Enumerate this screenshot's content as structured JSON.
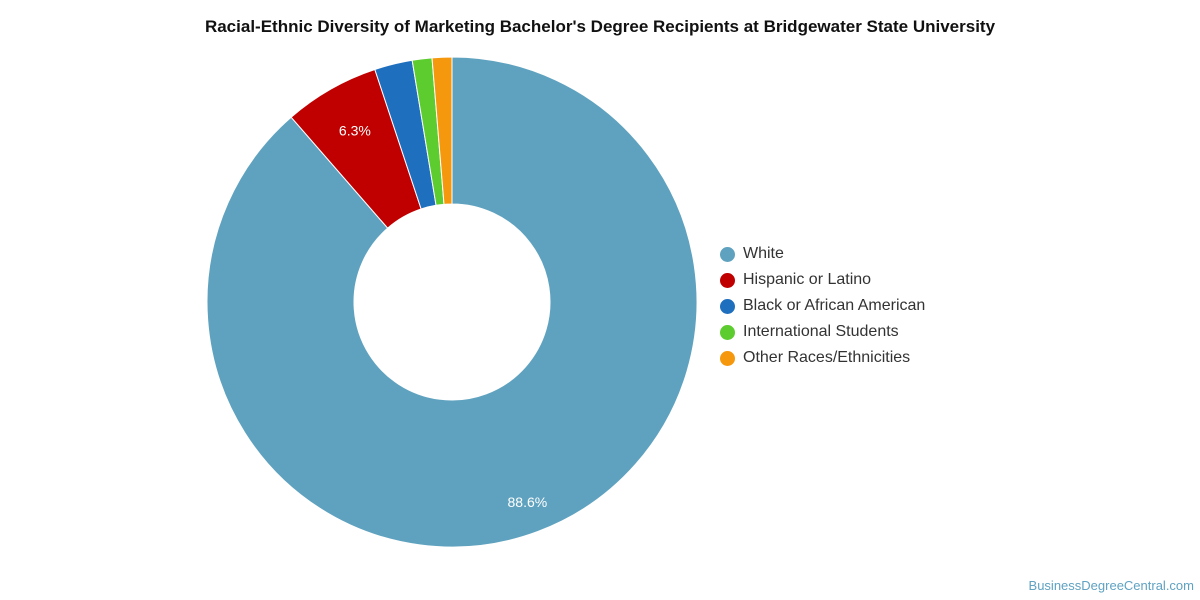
{
  "chart_data": {
    "type": "pie",
    "title": "Racial-Ethnic Diversity of Marketing Bachelor's Degree Recipients at Bridgewater State University",
    "categories": [
      "White",
      "Hispanic or Latino",
      "Black or African American",
      "International Students",
      "Other Races/Ethnicities"
    ],
    "values": [
      88.6,
      6.3,
      2.5,
      1.3,
      1.3
    ],
    "colors": [
      "#5fa2bf",
      "#c00000",
      "#1f6fbf",
      "#5ccc2f",
      "#f5980e"
    ],
    "data_labels": [
      "88.6%",
      "6.3%",
      "",
      "",
      ""
    ],
    "donut": true,
    "legend_position": "right"
  },
  "watermark": "BusinessDegreeCentral.com"
}
